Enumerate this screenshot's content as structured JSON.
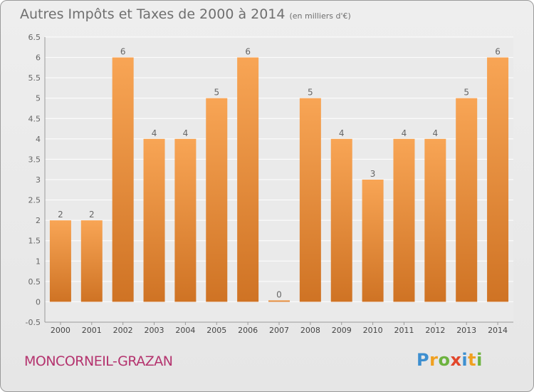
{
  "chart_data": {
    "type": "bar",
    "title": "Autres Impôts et Taxes de 2000 à 2014",
    "subtitle": "(en milliers d'€)",
    "categories": [
      "2000",
      "2001",
      "2002",
      "2003",
      "2004",
      "2005",
      "2006",
      "2007",
      "2008",
      "2009",
      "2010",
      "2011",
      "2012",
      "2013",
      "2014"
    ],
    "values": [
      2,
      2,
      6,
      4,
      4,
      5,
      6,
      0,
      5,
      4,
      3,
      4,
      4,
      5,
      6
    ],
    "data_labels": [
      "2",
      "2",
      "6",
      "4",
      "4",
      "5",
      "6",
      "0",
      "5",
      "4",
      "3",
      "4",
      "4",
      "5",
      "6"
    ],
    "yticks": [
      "-0.5",
      "0",
      "0.5",
      "1",
      "1.5",
      "2",
      "2.5",
      "3",
      "3.5",
      "4",
      "4.5",
      "5",
      "5.5",
      "6",
      "6.5"
    ],
    "ylim": [
      -0.5,
      6.5
    ],
    "grid": true,
    "xlabel": "",
    "ylabel": "",
    "bar_color_top": "#f8a555",
    "bar_color_bottom": "#cf7324"
  },
  "footer": {
    "place": "MONCORNEIL-GRAZAN",
    "logo": [
      "P",
      "r",
      "o",
      "x",
      "i",
      "t",
      "i"
    ],
    "logo_colors": [
      "#3d8fd0",
      "#f0a020",
      "#6db33f",
      "#e2462b",
      "#3d8fd0",
      "#f0a020",
      "#6db33f"
    ]
  }
}
